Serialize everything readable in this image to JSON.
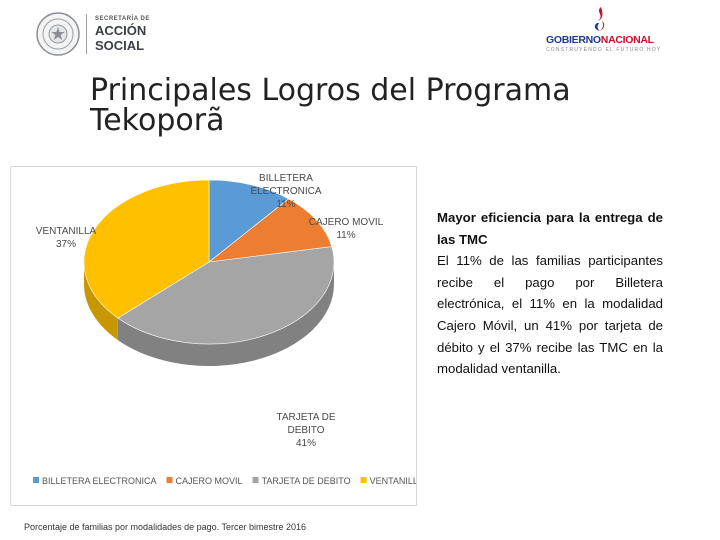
{
  "header": {
    "org_line1": "SECRETARÍA DE",
    "org_line2": "ACCIÓN",
    "org_line3": "SOCIAL",
    "gov_name_part1": "GOBIERNO",
    "gov_name_part2": "NACIONAL",
    "gov_tagline": "CONSTRUYENDO EL FUTURO HOY"
  },
  "title": "Principales Logros del Programa Tekoporã",
  "chart_data": {
    "type": "pie",
    "style": "3d",
    "title": "",
    "slices": [
      {
        "name": "BILLETERA ELECTRONICA",
        "value": 11,
        "label_lines": [
          "BILLETERA",
          "ELECTRONICA",
          "11%"
        ],
        "color": "#5b9bd5"
      },
      {
        "name": "CAJERO MOVIL",
        "value": 11,
        "label_lines": [
          "CAJERO MOVIL",
          "11%"
        ],
        "color": "#ed7d31"
      },
      {
        "name": "TARJETA DE DEBITO",
        "value": 41,
        "label_lines": [
          "TARJETA DE",
          "DEBITO",
          "41%"
        ],
        "color": "#a5a5a5"
      },
      {
        "name": "VENTANILLA",
        "value": 37,
        "label_lines": [
          "VENTANILLA",
          "37%"
        ],
        "color": "#ffc000"
      }
    ],
    "legend": [
      "BILLETERA ELECTRONICA",
      "CAJERO MOVIL",
      "TARJETA DE DEBITO",
      "VENTANILLA"
    ],
    "legend_position": "bottom"
  },
  "caption": "Porcentaje de familias por modalidades de pago. Tercer bimestre 2016",
  "description": {
    "heading": "Mayor eficiencia para la entrega de las TMC",
    "body": "El 11% de las familias participantes recibe el pago por Billetera electrónica, el 11% en la modalidad Cajero Móvil, un 41% por tarjeta de débito y el 37% recibe las TMC en la modalidad ventanilla."
  }
}
